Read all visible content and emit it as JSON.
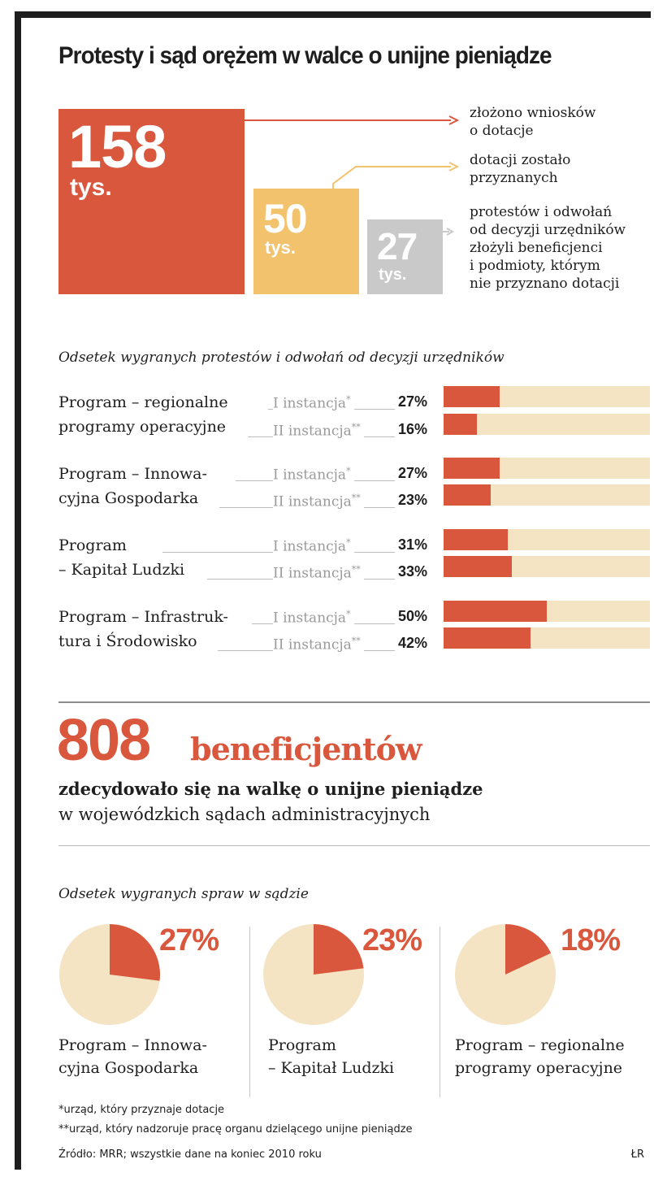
{
  "title": "Protesty i sąd orężem w walce o unijne pieniądze",
  "colors": {
    "orange": "#d9573d",
    "yellow": "#f2c26d",
    "gray": "#c9c9c9",
    "beige": "#f4e4c4"
  },
  "top_stats": [
    {
      "number": "158",
      "unit": "tys.",
      "label_lines": [
        "złożono wniosków",
        "o dotacje"
      ],
      "value": 158
    },
    {
      "number": "50",
      "unit": "tys.",
      "label_lines": [
        "dotacji zostało",
        "przyznanych"
      ],
      "value": 50
    },
    {
      "number": "27",
      "unit": "tys.",
      "label_lines": [
        "protestów i odwołań",
        "od decyzji urzędników",
        "złożyli beneficjenci",
        "i podmioty, którym",
        "nie przyznano dotacji"
      ],
      "value": 27
    }
  ],
  "protest_section": {
    "subtitle": "Odsetek wygranych protestów i odwołań od decyzji urzędników",
    "programs": [
      {
        "name_lines": [
          "Program – regionalne",
          "programy operacyjne"
        ],
        "rows": [
          {
            "inst": "I instancja",
            "mark": "*",
            "pct": "27%"
          },
          {
            "inst": "II instancja",
            "mark": "**",
            "pct": "16%"
          }
        ]
      },
      {
        "name_lines": [
          "Program – Innowa-",
          "cyjna Gospodarka"
        ],
        "rows": [
          {
            "inst": "I instancja",
            "mark": "*",
            "pct": "27%"
          },
          {
            "inst": "II instancja",
            "mark": "**",
            "pct": "23%"
          }
        ]
      },
      {
        "name_lines": [
          "Program",
          "– Kapitał Ludzki"
        ],
        "rows": [
          {
            "inst": "I instancja",
            "mark": "*",
            "pct": "31%"
          },
          {
            "inst": "II instancja",
            "mark": "**",
            "pct": "33%"
          }
        ]
      },
      {
        "name_lines": [
          "Program – Infrastruk-",
          "tura i Środowisko"
        ],
        "rows": [
          {
            "inst": "I instancja",
            "mark": "*",
            "pct": "50%"
          },
          {
            "inst": "II instancja",
            "mark": "**",
            "pct": "42%"
          }
        ]
      }
    ]
  },
  "court_section": {
    "big_number": "808",
    "big_word": "beneficjentów",
    "line1": "zdecydowało się na walkę o unijne pieniądze",
    "line2": "w wojewódzkich sądach administracyjnych",
    "subtitle": "Odsetek wygranych spraw w sądzie",
    "pies": [
      {
        "pct": "27%",
        "value": 27,
        "label_lines": [
          "Program – Innowa-",
          "cyjna Gospodarka"
        ]
      },
      {
        "pct": "23%",
        "value": 23,
        "label_lines": [
          "Program",
          "– Kapitał Ludzki"
        ]
      },
      {
        "pct": "18%",
        "value": 18,
        "label_lines": [
          "Program – regionalne",
          "programy operacyjne"
        ]
      }
    ]
  },
  "footnotes": {
    "f1": "*urząd, który przyznaje dotacje",
    "f2": "**urząd, który nadzoruje pracę organu dzielącego unijne pieniądze",
    "source": "Źródło: MRR; wszystkie dane na koniec 2010 roku",
    "initials": "ŁR"
  },
  "chart_data": [
    {
      "type": "bar",
      "title": "Protesty i sąd orężem w walce o unijne pieniądze",
      "categories": [
        "złożono wniosków o dotacje",
        "dotacji zostało przyznanych",
        "protestów i odwołań od decyzji urzędników"
      ],
      "values": [
        158,
        50,
        27
      ],
      "unit": "tys."
    },
    {
      "type": "bar",
      "title": "Odsetek wygranych protestów i odwołań od decyzji urzędników",
      "categories": [
        "Program – regionalne programy operacyjne",
        "Program – Innowacyjna Gospodarka",
        "Program – Kapitał Ludzki",
        "Program – Infrastruktura i Środowisko"
      ],
      "series": [
        {
          "name": "I instancja*",
          "values": [
            27,
            27,
            31,
            50
          ]
        },
        {
          "name": "II instancja**",
          "values": [
            16,
            23,
            33,
            42
          ]
        }
      ],
      "xlim": [
        0,
        100
      ],
      "unit": "%"
    },
    {
      "type": "pie",
      "title": "Odsetek wygranych spraw w sądzie",
      "categories": [
        "Program – Innowacyjna Gospodarka",
        "Program – Kapitał Ludzki",
        "Program – regionalne programy operacyjne"
      ],
      "values": [
        27,
        23,
        18
      ],
      "unit": "%"
    }
  ]
}
